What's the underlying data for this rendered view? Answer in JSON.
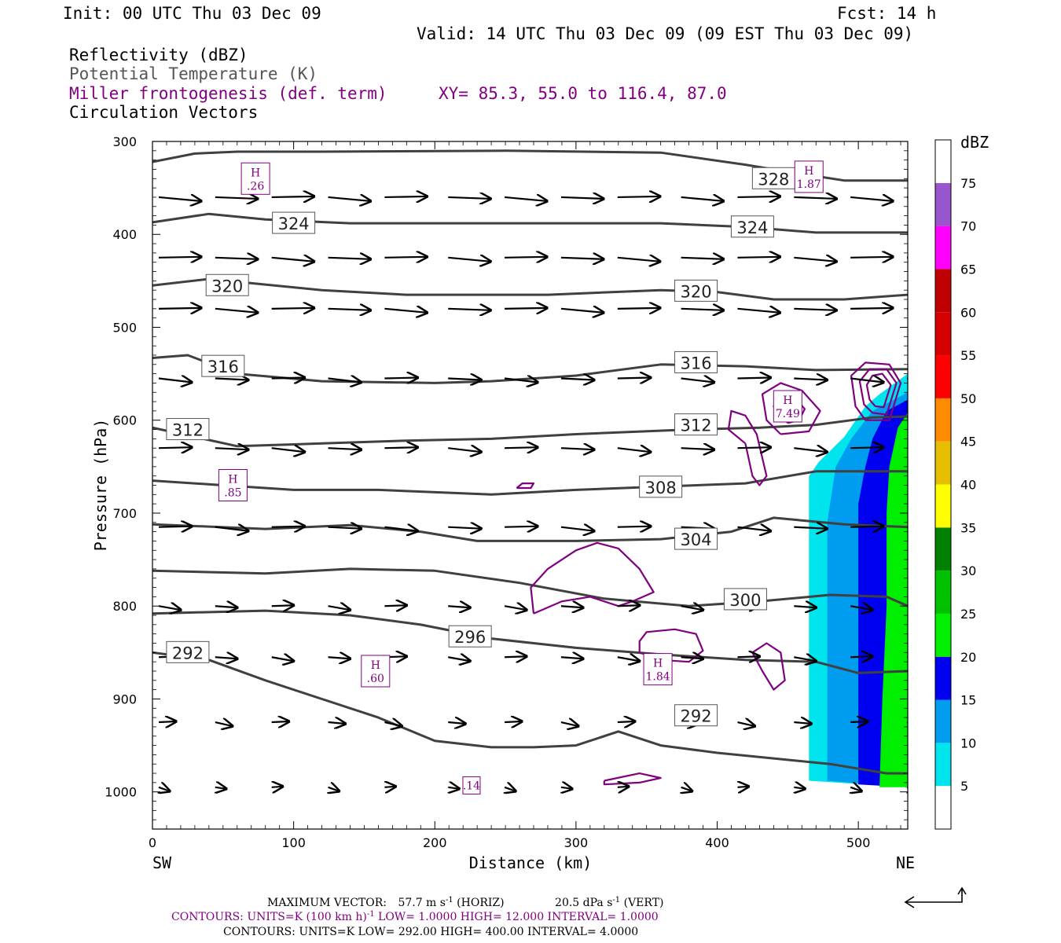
{
  "header": {
    "init": "Init: 00 UTC Thu 03 Dec 09",
    "fcst": "Fcst:   14 h",
    "valid": "Valid: 14 UTC Thu 03 Dec 09 (09 EST Thu 03 Dec 09)",
    "field1": "Reflectivity (dBZ)",
    "field2": "Potential Temperature (K)",
    "field3": "Miller frontogenesis (def. term)",
    "xy": "XY=  85.3, 55.0 to 116.4, 87.0",
    "field4": "Circulation Vectors"
  },
  "colors": {
    "theta_line": "#404040",
    "frontogenesis": "#800080",
    "vector": "#000000"
  },
  "chart_data": {
    "type": "cross-section",
    "xlabel": "Distance (km)",
    "ylabel": "Pressure (hPa)",
    "xlim": [
      0,
      535
    ],
    "ylim": [
      1040,
      300
    ],
    "x_ticks": [
      0,
      100,
      200,
      300,
      400,
      500
    ],
    "y_ticks": [
      300,
      400,
      500,
      600,
      700,
      800,
      900,
      1000
    ],
    "x_end_labels": {
      "left": "SW",
      "right": "NE"
    },
    "colorbar": {
      "title": "dBZ",
      "levels": [
        "5",
        "10",
        "15",
        "20",
        "25",
        "30",
        "35",
        "40",
        "45",
        "50",
        "55",
        "60",
        "65",
        "70",
        "75"
      ],
      "colors": [
        "#ffffff",
        "#00e4ee",
        "#009cf0",
        "#0000f0",
        "#00ee00",
        "#00c000",
        "#008000",
        "#ffff00",
        "#e6c000",
        "#ff8c00",
        "#ff0000",
        "#d60000",
        "#c00000",
        "#ff00ff",
        "#9955cc",
        "#ffffff"
      ]
    },
    "theta_contours": [
      {
        "value": 292,
        "label": "292",
        "points": [
          [
            0,
            850
          ],
          [
            40,
            858
          ],
          [
            80,
            880
          ],
          [
            120,
            900
          ],
          [
            160,
            920
          ],
          [
            200,
            945
          ],
          [
            240,
            952
          ],
          [
            270,
            952
          ],
          [
            300,
            950
          ],
          [
            330,
            935
          ],
          [
            360,
            950
          ],
          [
            400,
            958
          ],
          [
            440,
            964
          ],
          [
            480,
            970
          ],
          [
            520,
            980
          ],
          [
            535,
            980
          ]
        ]
      },
      {
        "value": 296,
        "label": "296",
        "points": [
          [
            0,
            808
          ],
          [
            80,
            805
          ],
          [
            140,
            810
          ],
          [
            190,
            820
          ],
          [
            240,
            835
          ],
          [
            300,
            845
          ],
          [
            360,
            852
          ],
          [
            420,
            858
          ],
          [
            470,
            860
          ],
          [
            500,
            872
          ],
          [
            535,
            870
          ]
        ]
      },
      {
        "value": 300,
        "label": "300",
        "points": [
          [
            0,
            762
          ],
          [
            80,
            765
          ],
          [
            140,
            760
          ],
          [
            200,
            762
          ],
          [
            260,
            775
          ],
          [
            320,
            792
          ],
          [
            380,
            800
          ],
          [
            430,
            795
          ],
          [
            480,
            788
          ],
          [
            520,
            790
          ],
          [
            535,
            800
          ]
        ]
      },
      {
        "value": 304,
        "label": "304",
        "points": [
          [
            0,
            712
          ],
          [
            80,
            717
          ],
          [
            140,
            713
          ],
          [
            190,
            720
          ],
          [
            230,
            730
          ],
          [
            300,
            730
          ],
          [
            360,
            728
          ],
          [
            410,
            720
          ],
          [
            440,
            705
          ],
          [
            490,
            712
          ],
          [
            535,
            715
          ]
        ]
      },
      {
        "value": 308,
        "label": "308",
        "points": [
          [
            0,
            665
          ],
          [
            50,
            670
          ],
          [
            100,
            675
          ],
          [
            160,
            675
          ],
          [
            240,
            680
          ],
          [
            300,
            675
          ],
          [
            350,
            672
          ],
          [
            420,
            668
          ],
          [
            470,
            655
          ],
          [
            535,
            655
          ]
        ]
      },
      {
        "value": 312,
        "label": "312",
        "points": [
          [
            0,
            608
          ],
          [
            60,
            628
          ],
          [
            120,
            625
          ],
          [
            180,
            622
          ],
          [
            240,
            620
          ],
          [
            300,
            615
          ],
          [
            380,
            610
          ],
          [
            430,
            608
          ],
          [
            470,
            605
          ],
          [
            510,
            597
          ],
          [
            535,
            596
          ]
        ]
      },
      {
        "value": 316,
        "label": "316",
        "points": [
          [
            0,
            533
          ],
          [
            25,
            530
          ],
          [
            60,
            550
          ],
          [
            120,
            558
          ],
          [
            200,
            560
          ],
          [
            240,
            558
          ],
          [
            300,
            552
          ],
          [
            360,
            540
          ],
          [
            420,
            542
          ],
          [
            470,
            546
          ],
          [
            535,
            545
          ]
        ]
      },
      {
        "value": 320,
        "label": "320",
        "points": [
          [
            0,
            455
          ],
          [
            40,
            448
          ],
          [
            80,
            454
          ],
          [
            120,
            460
          ],
          [
            180,
            465
          ],
          [
            280,
            465
          ],
          [
            360,
            460
          ],
          [
            400,
            462
          ],
          [
            440,
            470
          ],
          [
            490,
            470
          ],
          [
            535,
            465
          ]
        ]
      },
      {
        "value": 324,
        "label": "324",
        "points": [
          [
            0,
            387
          ],
          [
            40,
            378
          ],
          [
            80,
            384
          ],
          [
            140,
            388
          ],
          [
            260,
            388
          ],
          [
            360,
            388
          ],
          [
            420,
            392
          ],
          [
            470,
            398
          ],
          [
            535,
            398
          ]
        ]
      },
      {
        "value": 328,
        "label": "328",
        "points": [
          [
            0,
            322
          ],
          [
            30,
            313
          ],
          [
            60,
            311
          ],
          [
            120,
            311
          ],
          [
            250,
            310
          ],
          [
            360,
            312
          ],
          [
            420,
            325
          ],
          [
            460,
            335
          ],
          [
            490,
            342
          ],
          [
            535,
            342
          ]
        ]
      }
    ],
    "theta_labels": [
      {
        "text": "292",
        "x": 25,
        "p": 850
      },
      {
        "text": "296",
        "x": 225,
        "p": 833
      },
      {
        "text": "300",
        "x": 420,
        "p": 793
      },
      {
        "text": "292",
        "x": 385,
        "p": 918
      },
      {
        "text": "304",
        "x": 385,
        "p": 728
      },
      {
        "text": "308",
        "x": 360,
        "p": 672
      },
      {
        "text": "312",
        "x": 25,
        "p": 610
      },
      {
        "text": "312",
        "x": 385,
        "p": 605
      },
      {
        "text": "316",
        "x": 50,
        "p": 542
      },
      {
        "text": "316",
        "x": 385,
        "p": 538
      },
      {
        "text": "320",
        "x": 53,
        "p": 455
      },
      {
        "text": "320",
        "x": 385,
        "p": 461
      },
      {
        "text": "324",
        "x": 100,
        "p": 388
      },
      {
        "text": "324",
        "x": 425,
        "p": 392
      },
      {
        "text": "328",
        "x": 440,
        "p": 340
      }
    ],
    "frontogenesis_contours": [
      {
        "points": [
          [
            270,
            808
          ],
          [
            290,
            795
          ],
          [
            310,
            790
          ],
          [
            330,
            800
          ],
          [
            340,
            795
          ],
          [
            355,
            785
          ],
          [
            345,
            760
          ],
          [
            330,
            738
          ],
          [
            315,
            732
          ],
          [
            300,
            740
          ],
          [
            280,
            760
          ],
          [
            268,
            780
          ],
          [
            270,
            808
          ]
        ]
      },
      {
        "points": [
          [
            345,
            850
          ],
          [
            360,
            858
          ],
          [
            380,
            860
          ],
          [
            390,
            848
          ],
          [
            385,
            830
          ],
          [
            370,
            825
          ],
          [
            350,
            828
          ],
          [
            345,
            838
          ],
          [
            345,
            850
          ]
        ]
      },
      {
        "points": [
          [
            420,
            625
          ],
          [
            425,
            660
          ],
          [
            430,
            670
          ],
          [
            435,
            660
          ],
          [
            428,
            615
          ],
          [
            420,
            595
          ],
          [
            410,
            590
          ],
          [
            408,
            610
          ],
          [
            420,
            625
          ]
        ]
      },
      {
        "points": [
          [
            445,
            615
          ],
          [
            465,
            612
          ],
          [
            473,
            590
          ],
          [
            460,
            568
          ],
          [
            445,
            560
          ],
          [
            432,
            572
          ],
          [
            435,
            600
          ],
          [
            445,
            615
          ]
        ]
      },
      {
        "points": [
          [
            450,
            603
          ],
          [
            458,
            600
          ],
          [
            462,
            588
          ],
          [
            455,
            575
          ],
          [
            445,
            572
          ],
          [
            440,
            585
          ],
          [
            450,
            603
          ]
        ]
      },
      {
        "points": [
          [
            505,
            600
          ],
          [
            522,
            600
          ],
          [
            530,
            560
          ],
          [
            522,
            540
          ],
          [
            505,
            538
          ],
          [
            495,
            552
          ],
          [
            498,
            585
          ],
          [
            505,
            600
          ]
        ]
      },
      {
        "points": [
          [
            510,
            592
          ],
          [
            520,
            594
          ],
          [
            527,
            560
          ],
          [
            520,
            545
          ],
          [
            508,
            545
          ],
          [
            501,
            558
          ],
          [
            504,
            583
          ],
          [
            510,
            592
          ]
        ]
      },
      {
        "points": [
          [
            512,
            585
          ],
          [
            518,
            586
          ],
          [
            523,
            562
          ],
          [
            517,
            550
          ],
          [
            510,
            552
          ],
          [
            506,
            562
          ],
          [
            508,
            578
          ],
          [
            512,
            585
          ]
        ]
      },
      {
        "points": [
          [
            425,
            850
          ],
          [
            435,
            840
          ],
          [
            445,
            850
          ],
          [
            448,
            880
          ],
          [
            440,
            890
          ],
          [
            432,
            870
          ],
          [
            425,
            850
          ]
        ]
      },
      {
        "points": [
          [
            258,
            673
          ],
          [
            268,
            673
          ],
          [
            270,
            668
          ],
          [
            262,
            668
          ],
          [
            258,
            673
          ]
        ]
      },
      {
        "points": [
          [
            320,
            988
          ],
          [
            345,
            980
          ],
          [
            360,
            985
          ],
          [
            345,
            990
          ],
          [
            320,
            992
          ],
          [
            320,
            988
          ]
        ]
      }
    ],
    "frontogenesis_maxima": [
      {
        "label": "H",
        "value": ".26",
        "x": 73,
        "p": 340
      },
      {
        "label": "H",
        "value": "1.87",
        "x": 465,
        "p": 338
      },
      {
        "label": "H",
        "value": "7.49",
        "x": 450,
        "p": 585
      },
      {
        "label": "H",
        "value": ".85",
        "x": 57,
        "p": 670
      },
      {
        "label": "H",
        "value": ".60",
        "x": 158,
        "p": 870
      },
      {
        "label": "H",
        "value": "1.84",
        "x": 358,
        "p": 868
      },
      {
        "label": "",
        "value": ".14",
        "x": 226,
        "p": 993
      }
    ],
    "reflectivity_regions": [
      {
        "dbz": 5,
        "points": [
          [
            465,
            988
          ],
          [
            465,
            660
          ],
          [
            472,
            645
          ],
          [
            490,
            618
          ],
          [
            505,
            585
          ],
          [
            515,
            572
          ],
          [
            535,
            550
          ],
          [
            535,
            995
          ],
          [
            465,
            988
          ]
        ]
      },
      {
        "dbz": 10,
        "points": [
          [
            478,
            988
          ],
          [
            478,
            710
          ],
          [
            484,
            650
          ],
          [
            495,
            620
          ],
          [
            510,
            590
          ],
          [
            535,
            570
          ],
          [
            535,
            995
          ],
          [
            478,
            988
          ]
        ]
      },
      {
        "dbz": 15,
        "points": [
          [
            500,
            992
          ],
          [
            500,
            690
          ],
          [
            505,
            650
          ],
          [
            510,
            620
          ],
          [
            520,
            590
          ],
          [
            535,
            578
          ],
          [
            535,
            995
          ],
          [
            500,
            992
          ]
        ]
      },
      {
        "dbz": 20,
        "points": [
          [
            515,
            995
          ],
          [
            517,
            900
          ],
          [
            520,
            800
          ],
          [
            520,
            700
          ],
          [
            522,
            650
          ],
          [
            528,
            608
          ],
          [
            535,
            592
          ],
          [
            535,
            995
          ],
          [
            515,
            995
          ]
        ]
      }
    ],
    "vectors": {
      "pressure_levels": [
        360,
        425,
        480,
        555,
        630,
        715,
        800,
        855,
        925,
        995
      ],
      "x_positions": [
        0,
        40,
        80,
        120,
        160,
        205,
        245,
        285,
        325,
        370,
        410,
        450,
        490,
        530
      ]
    }
  },
  "footer": {
    "max_vector_lead": "MAXIMUM VECTOR:",
    "max_horiz": "57.7 m s",
    "max_horiz_exp": "-1",
    "max_horiz_tail": " (HORIZ)",
    "max_vert": "20.5 dPa s",
    "max_vert_exp": "-1",
    "max_vert_tail": " (VERT)",
    "contours1_a": "CONTOURS:  UNITS=K (100 km h)",
    "contours1_exp": "-1",
    "contours1_b": "  LOW=  1.0000      HIGH=  12.000      INTERVAL=   1.0000",
    "contours2": "CONTOURS:  UNITS=K  LOW=  292.00       HIGH=  400.00       INTERVAL=   4.0000"
  }
}
